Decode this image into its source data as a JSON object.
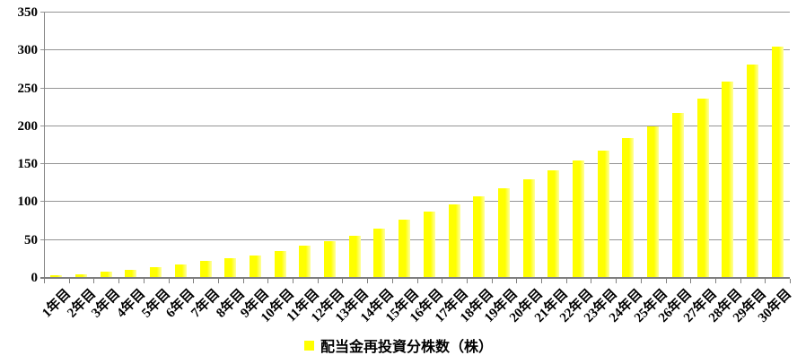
{
  "chart_data": {
    "type": "bar",
    "title": "",
    "categories": [
      "1年目",
      "2年目",
      "3年目",
      "4年目",
      "5年目",
      "6年目",
      "7年目",
      "8年目",
      "9年目",
      "10年目",
      "11年目",
      "12年目",
      "13年目",
      "14年目",
      "15年目",
      "16年目",
      "17年目",
      "18年目",
      "19年目",
      "20年目",
      "21年目",
      "22年目",
      "23年目",
      "24年目",
      "25年目",
      "26年目",
      "27年目",
      "28年目",
      "29年目",
      "30年目"
    ],
    "values": [
      3,
      5,
      8,
      11,
      14,
      18,
      22,
      26,
      30,
      35,
      42,
      48,
      56,
      65,
      77,
      87,
      97,
      108,
      118,
      130,
      142,
      155,
      168,
      184,
      200,
      218,
      237,
      259,
      281,
      305
    ],
    "series": [
      {
        "name": "配当金再投資分株数（株）",
        "values": [
          3,
          5,
          8,
          11,
          14,
          18,
          22,
          26,
          30,
          35,
          42,
          48,
          56,
          65,
          77,
          87,
          97,
          108,
          118,
          130,
          142,
          155,
          168,
          184,
          200,
          218,
          237,
          259,
          281,
          305
        ]
      }
    ],
    "xlabel": "",
    "ylabel": "",
    "ylim": [
      0,
      350
    ],
    "yticks": [
      0,
      50,
      100,
      150,
      200,
      250,
      300,
      350
    ],
    "grid": true,
    "legend_position": "bottom"
  },
  "legend": {
    "label": "配当金再投資分株数（株）",
    "swatch_color": "#FFFF00"
  },
  "colors": {
    "bar": "#FFFF00",
    "bar_highlight": "#FFFF9E",
    "gridline": "#949494",
    "axis": "#7F7F7F",
    "text": "#000000",
    "background": "#FFFFFF"
  }
}
